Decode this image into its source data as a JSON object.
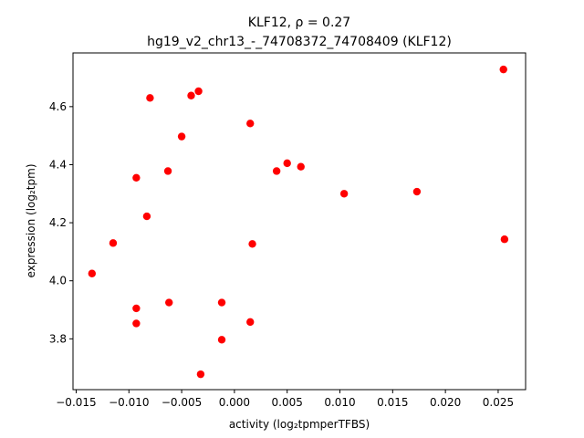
{
  "chart_data": {
    "type": "scatter",
    "title_line1": "KLF12, ρ = 0.27",
    "title_line2": "hg19_v2_chr13_-_74708372_74708409 (KLF12)",
    "xlabel": "activity (log₂tpmperTFBS)",
    "ylabel": "expression (log₂tpm)",
    "xlim": [
      -0.0153,
      0.0276
    ],
    "ylim": [
      3.625,
      4.785
    ],
    "x_ticks": [
      -0.015,
      -0.01,
      -0.005,
      0.0,
      0.005,
      0.01,
      0.015,
      0.02,
      0.025
    ],
    "x_tick_labels": [
      "−0.015",
      "−0.010",
      "−0.005",
      "0.000",
      "0.005",
      "0.010",
      "0.015",
      "0.020",
      "0.025"
    ],
    "y_ticks": [
      3.8,
      4.0,
      4.2,
      4.4,
      4.6
    ],
    "y_tick_labels": [
      "3.8",
      "4.0",
      "4.2",
      "4.4",
      "4.6"
    ],
    "grid": false,
    "point_color": "#ff0000",
    "points": [
      {
        "x": -0.0135,
        "y": 4.025
      },
      {
        "x": -0.0115,
        "y": 4.13
      },
      {
        "x": -0.0093,
        "y": 4.355
      },
      {
        "x": -0.0093,
        "y": 3.905
      },
      {
        "x": -0.0093,
        "y": 3.853
      },
      {
        "x": -0.0083,
        "y": 4.222
      },
      {
        "x": -0.008,
        "y": 4.63
      },
      {
        "x": -0.0063,
        "y": 4.378
      },
      {
        "x": -0.0062,
        "y": 3.925
      },
      {
        "x": -0.005,
        "y": 4.497
      },
      {
        "x": -0.0041,
        "y": 4.638
      },
      {
        "x": -0.0034,
        "y": 4.653
      },
      {
        "x": -0.0032,
        "y": 3.678
      },
      {
        "x": -0.0012,
        "y": 3.925
      },
      {
        "x": -0.0012,
        "y": 3.797
      },
      {
        "x": 0.0015,
        "y": 4.542
      },
      {
        "x": 0.0015,
        "y": 3.858
      },
      {
        "x": 0.0017,
        "y": 4.127
      },
      {
        "x": 0.004,
        "y": 4.378
      },
      {
        "x": 0.005,
        "y": 4.405
      },
      {
        "x": 0.0063,
        "y": 4.393
      },
      {
        "x": 0.0104,
        "y": 4.3
      },
      {
        "x": 0.0173,
        "y": 4.307
      },
      {
        "x": 0.0255,
        "y": 4.728
      },
      {
        "x": 0.0256,
        "y": 4.143
      }
    ]
  }
}
